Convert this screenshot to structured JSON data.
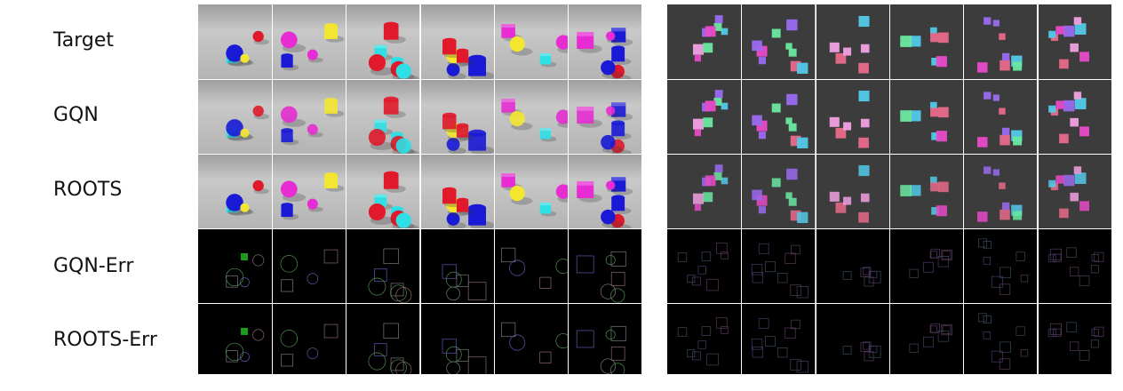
{
  "figure": {
    "row_labels": [
      "Target",
      "GQN",
      "ROOTS",
      "GQN-Err",
      "ROOTS-Err"
    ],
    "panels": [
      "shapes-scene",
      "multicolor-blocks-scene"
    ],
    "columns_per_panel": 6
  },
  "colors": {
    "magenta": "#e62cd2",
    "yellow": "#f2e630",
    "blue": "#1a1ad6",
    "red": "#e01a2a",
    "cyan": "#2ee0e6",
    "floor_light": "#c8c8c8",
    "floor_dark": "#9e9e9e",
    "dark_bg": "#3c3c3c",
    "err_bg": "#000000"
  }
}
